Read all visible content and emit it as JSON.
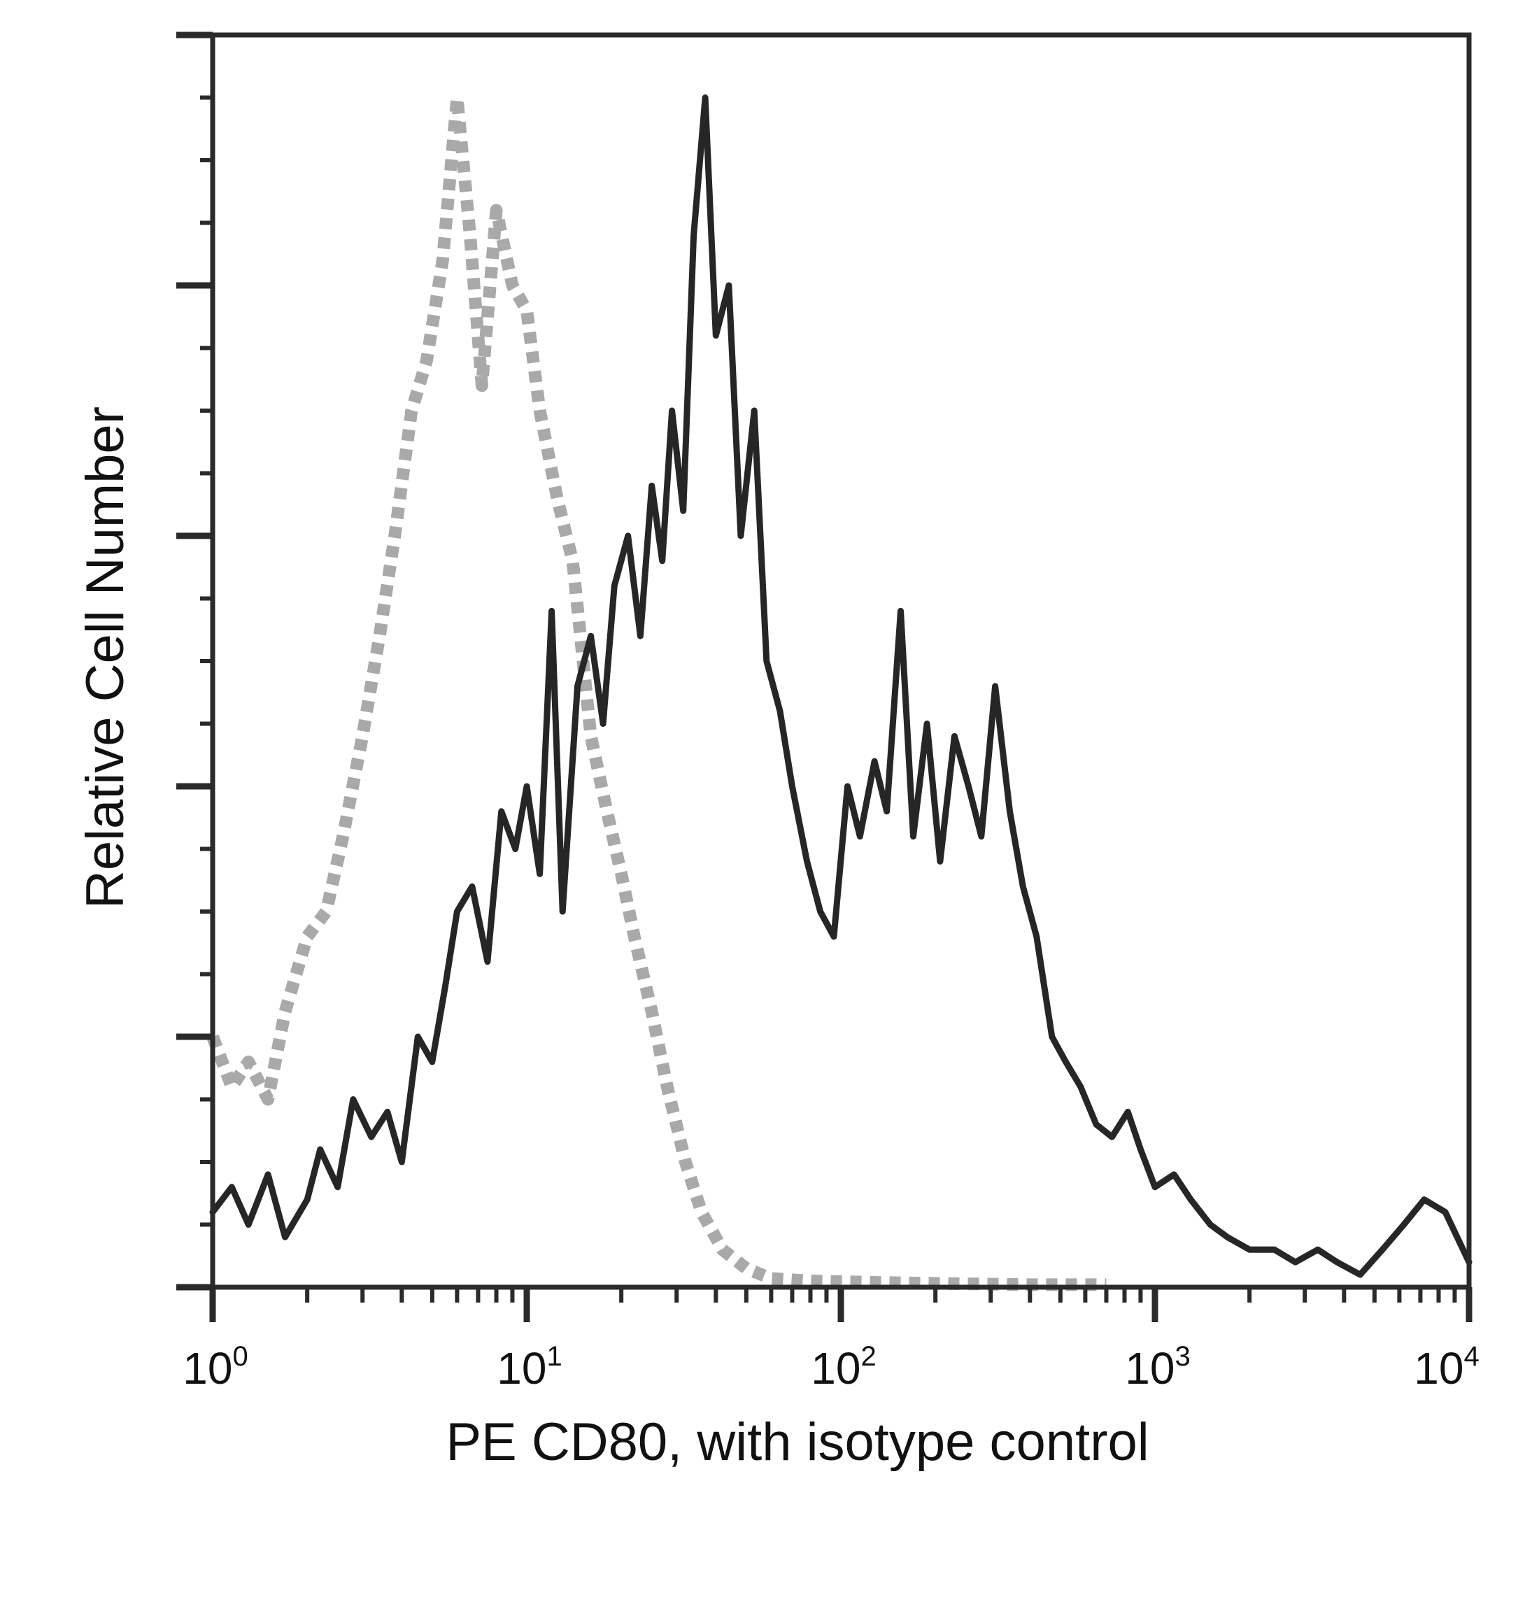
{
  "chart_data": {
    "type": "area",
    "title": "",
    "xlabel": "PE CD80, with isotype control",
    "ylabel": "Relative Cell Number",
    "x_scale": "log",
    "xlim": [
      1,
      10000
    ],
    "ylim": [
      0,
      100
    ],
    "x_ticks": [
      {
        "value": 1,
        "base": "10",
        "exp": "0"
      },
      {
        "value": 10,
        "base": "10",
        "exp": "1"
      },
      {
        "value": 100,
        "base": "10",
        "exp": "2"
      },
      {
        "value": 1000,
        "base": "10",
        "exp": "3"
      },
      {
        "value": 10000,
        "base": "10",
        "exp": "4"
      }
    ],
    "y_tick_labels": false,
    "grid": false,
    "legend": "none",
    "series": [
      {
        "role": "isotype-control",
        "color": "#a9a9a9",
        "style": "dotted",
        "x": [
          1.0,
          1.15,
          1.3,
          1.5,
          1.7,
          2.0,
          2.3,
          2.6,
          3.0,
          3.4,
          3.8,
          4.3,
          4.8,
          5.4,
          6.0,
          6.6,
          7.2,
          8.0,
          9.0,
          10.0,
          11.0,
          12.5,
          14.0,
          16.0,
          18.0,
          20.0,
          22.0,
          25.0,
          28.0,
          32.0,
          36.0,
          42.0,
          50.0,
          60.0,
          80.0,
          120.0,
          200.0,
          400.0,
          700.0
        ],
        "y": [
          20,
          16,
          18,
          15,
          22,
          28,
          30,
          36,
          44,
          52,
          60,
          70,
          74,
          82,
          95,
          84,
          72,
          86,
          80,
          78,
          70,
          63,
          58,
          44,
          38,
          33,
          28,
          22,
          16,
          10,
          6,
          3,
          1.5,
          0.7,
          0.5,
          0.4,
          0.3,
          0.2,
          0.2
        ]
      },
      {
        "role": "PE CD80",
        "color": "#262626",
        "style": "solid",
        "x": [
          1.0,
          1.15,
          1.3,
          1.5,
          1.7,
          2.0,
          2.2,
          2.5,
          2.8,
          3.2,
          3.6,
          4.0,
          4.5,
          5.0,
          5.5,
          6.0,
          6.7,
          7.5,
          8.3,
          9.2,
          10.0,
          11.0,
          12.0,
          13.0,
          14.5,
          16.0,
          17.5,
          19.0,
          21.0,
          23.0,
          25.0,
          27.0,
          29.0,
          31.5,
          34.0,
          37.0,
          40.0,
          44.0,
          48.0,
          53.0,
          58.0,
          64.0,
          70.0,
          78.0,
          86.0,
          95.0,
          105.0,
          115.0,
          128.0,
          140.0,
          155.0,
          170.0,
          188.0,
          207.0,
          230.0,
          255.0,
          280.0,
          310.0,
          345.0,
          380.0,
          420.0,
          470.0,
          520.0,
          580.0,
          650.0,
          730.0,
          820.0,
          900.0,
          1000.0,
          1150.0,
          1300.0,
          1500.0,
          1700.0,
          2000.0,
          2400.0,
          2800.0,
          3300.0,
          3800.0,
          4500.0,
          5300.0,
          6200.0,
          7200.0,
          8400.0,
          10000.0
        ],
        "y": [
          6,
          8,
          5,
          9,
          4,
          7,
          11,
          8,
          15,
          12,
          14,
          10,
          20,
          18,
          24,
          30,
          32,
          26,
          38,
          35,
          40,
          33,
          54,
          30,
          48,
          52,
          45,
          56,
          60,
          52,
          64,
          58,
          70,
          62,
          84,
          95,
          76,
          80,
          60,
          70,
          50,
          46,
          40,
          34,
          30,
          28,
          40,
          36,
          42,
          38,
          54,
          36,
          45,
          34,
          44,
          40,
          36,
          48,
          38,
          32,
          28,
          20,
          18,
          16,
          13,
          12,
          14,
          11,
          8,
          9,
          7,
          5,
          4,
          3,
          3,
          2,
          3,
          2,
          1,
          3,
          5,
          7,
          6,
          2
        ]
      }
    ]
  }
}
